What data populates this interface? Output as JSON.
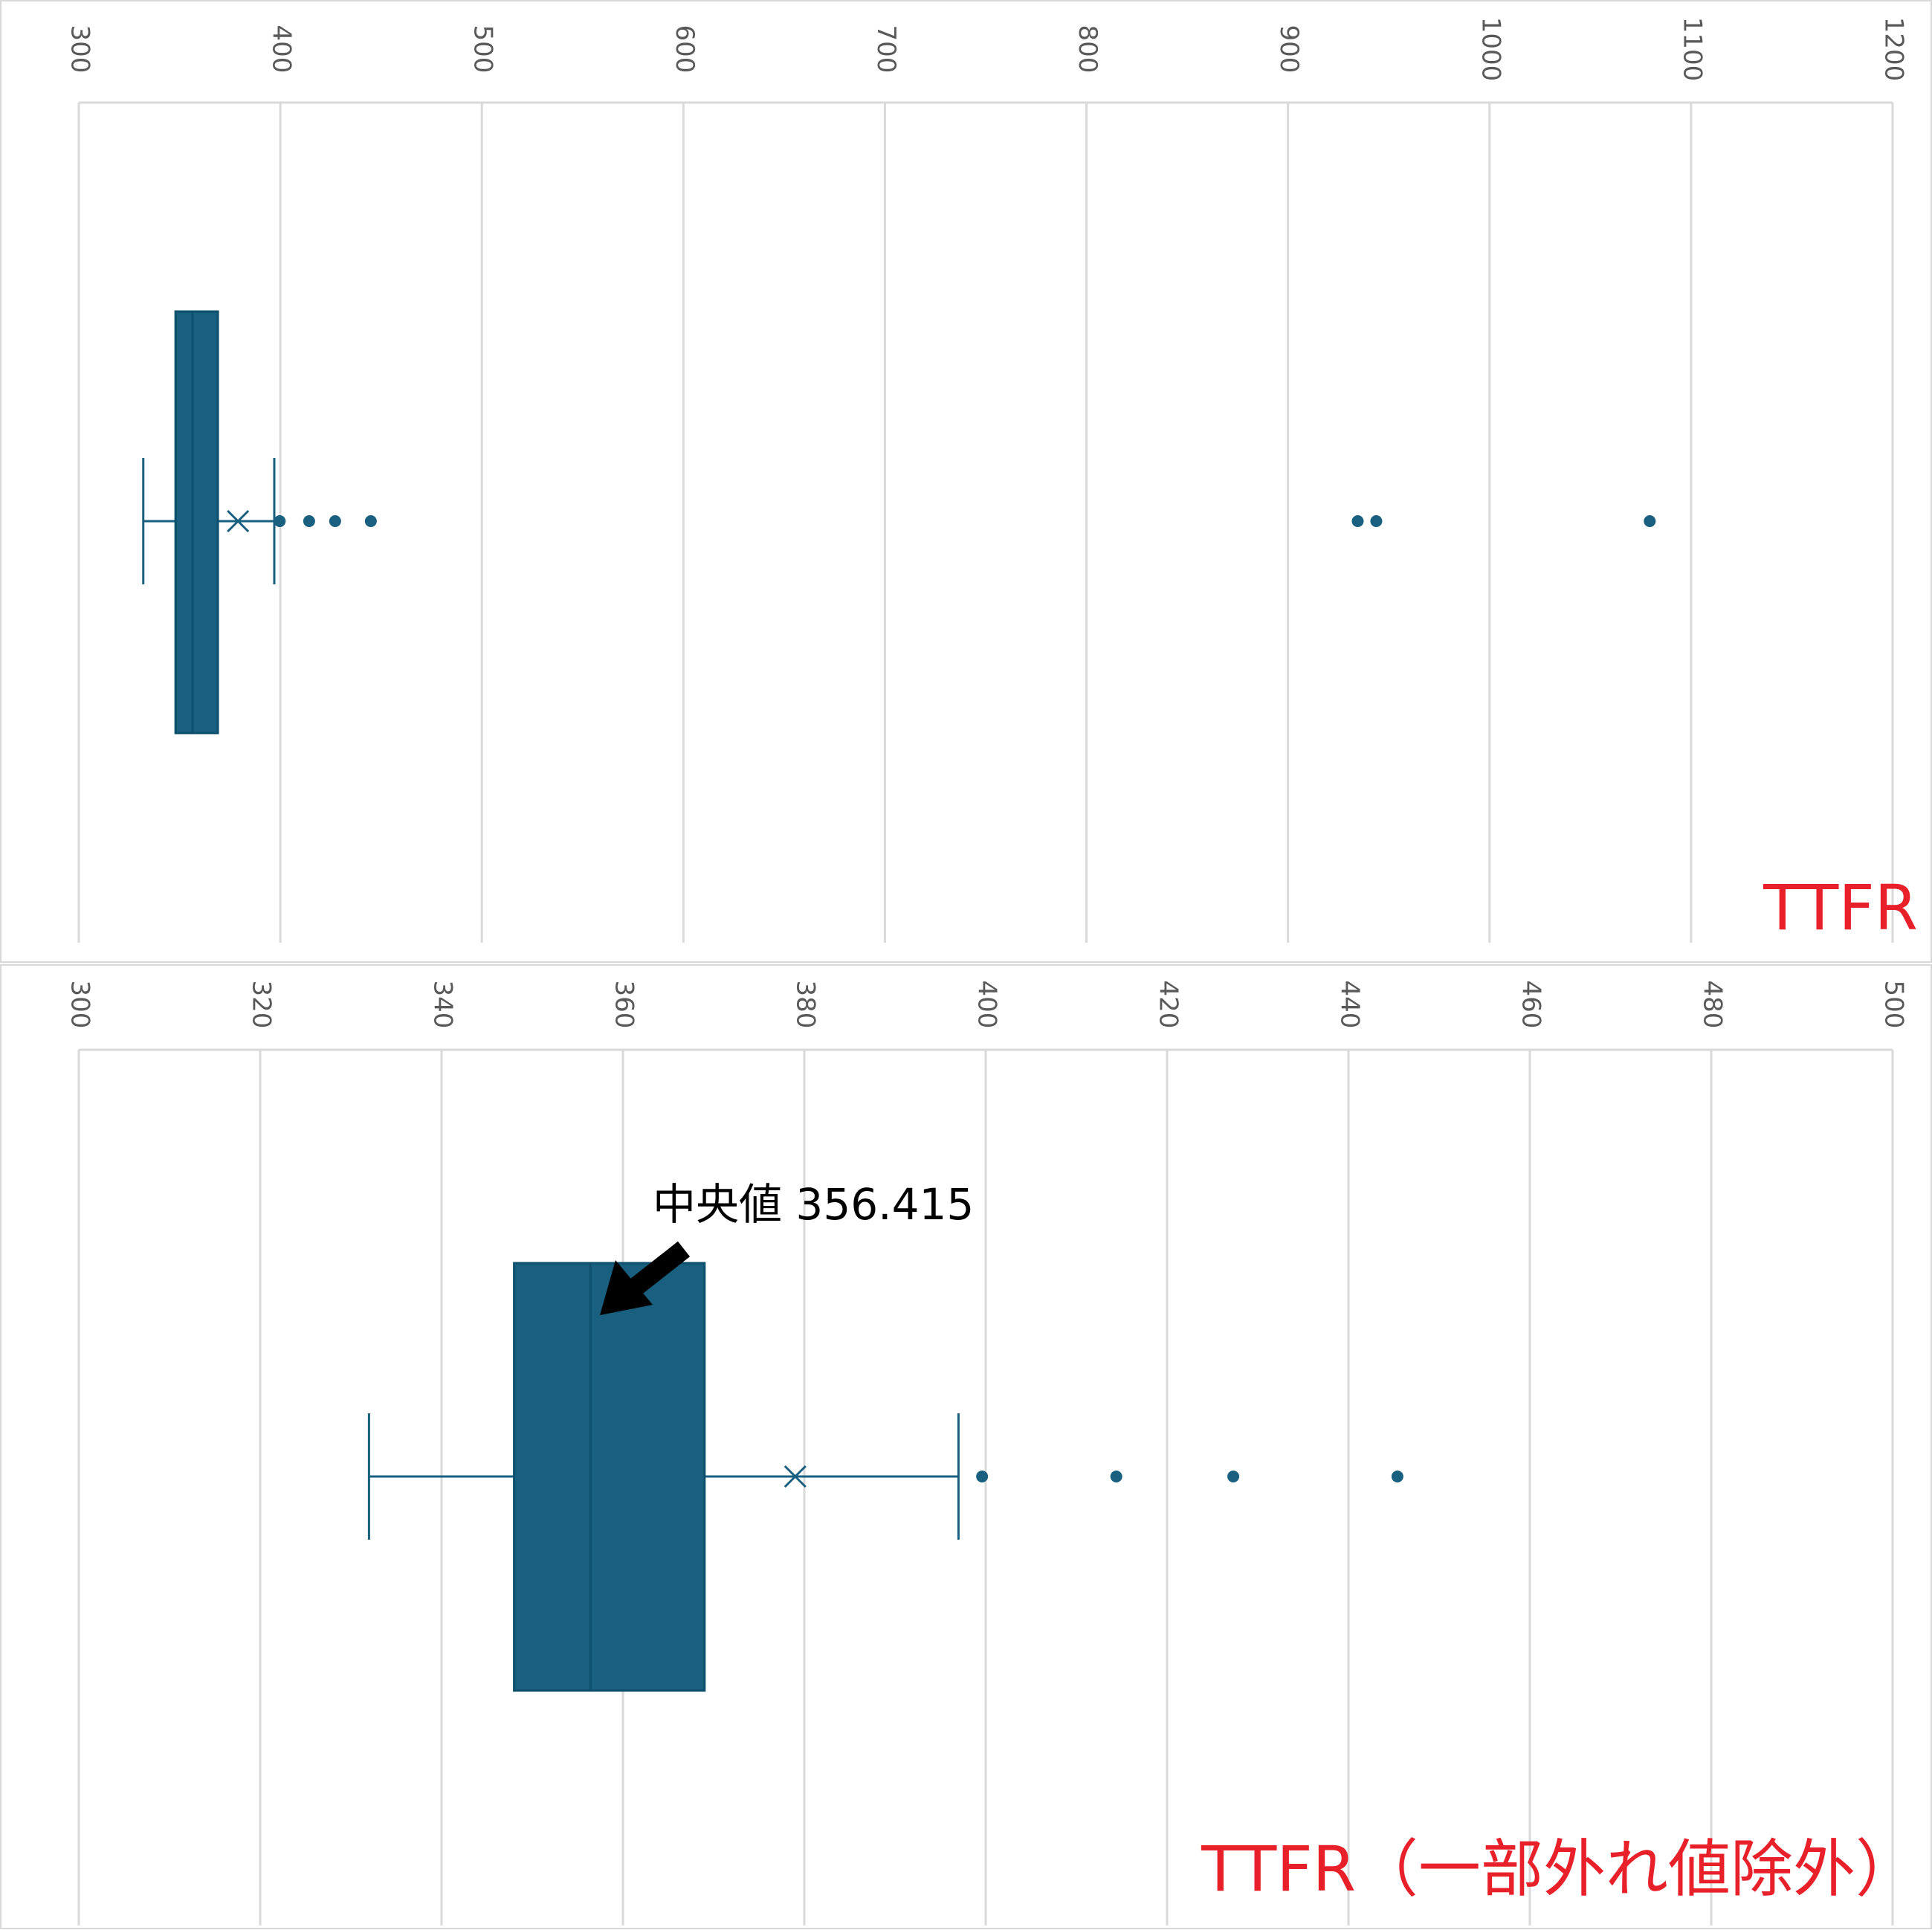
{
  "chart_data": [
    {
      "type": "box",
      "title": "TTFR",
      "color": "#185f80",
      "whisker_low": 332,
      "q1": 348,
      "median": 356.415,
      "q3": 369,
      "whisker_high": 397,
      "mean": 379,
      "outliers": [
        399.7,
        414.3,
        427.2,
        444.9,
        934.6,
        943.8,
        1079.5
      ],
      "xlim": [
        300,
        1200
      ],
      "xticks": [
        300,
        400,
        500,
        600,
        700,
        800,
        900,
        1000,
        1100,
        1200
      ],
      "grid": true
    },
    {
      "type": "box",
      "title": "TTFR（一部外れ値除外）",
      "color": "#185f80",
      "whisker_low": 332,
      "q1": 348,
      "median": 356.415,
      "q3": 369,
      "whisker_high": 397,
      "mean": 379,
      "outliers": [
        399.6,
        414.4,
        427.3,
        445.4
      ],
      "annotation": "中央値 356.415",
      "xlim": [
        300,
        500
      ],
      "xticks": [
        300,
        320,
        340,
        360,
        380,
        400,
        420,
        440,
        460,
        480,
        500
      ],
      "grid": true
    }
  ]
}
